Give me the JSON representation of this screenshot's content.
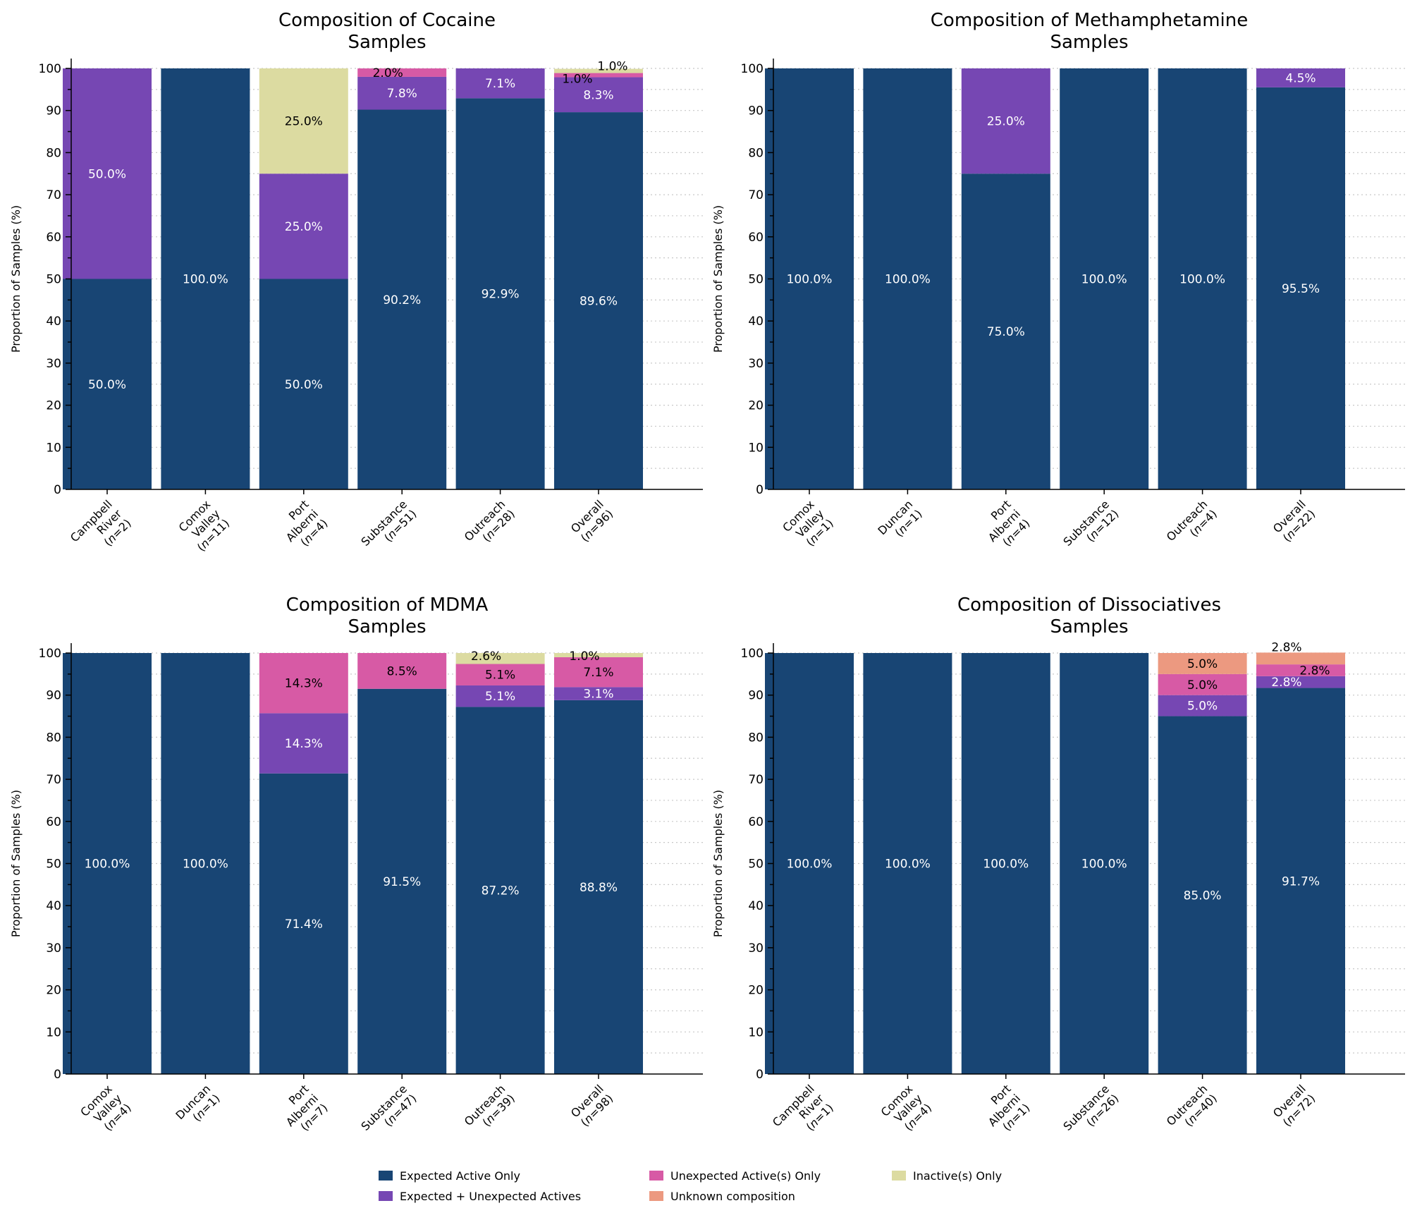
{
  "legend": {
    "placement": "bottom-center",
    "items": [
      {
        "key": "expected",
        "label": "Expected Active Only",
        "color": "#184574"
      },
      {
        "key": "exp_unexp",
        "label": "Expected + Unexpected Actives",
        "color": "#7647b3"
      },
      {
        "key": "unexp",
        "label": "Unexpected Active(s) Only",
        "color": "#d75aa5"
      },
      {
        "key": "unknown",
        "label": "Unknown composition",
        "color": "#ec9980"
      },
      {
        "key": "inactive",
        "label": "Inactive(s) Only",
        "color": "#dcdba1"
      }
    ]
  },
  "chart_data": [
    {
      "type": "bar",
      "stacked": true,
      "title": "Composition of Cocaine\nSamples",
      "xlabel": "",
      "ylabel": "Proportion of Samples (%)",
      "ylim": [
        0,
        100
      ],
      "yticks": [
        0,
        10,
        20,
        30,
        40,
        50,
        60,
        70,
        80,
        90,
        100
      ],
      "grid": true,
      "categories": [
        "Campbell\nRiver\n(n=2)",
        "Comox\nValley\n(n=11)",
        "Port\nAlberni\n(n=4)",
        "Substance\n(n=51)",
        "Outreach\n(n=28)",
        "Overall\n(n=96)"
      ],
      "series": [
        {
          "name": "Expected Active Only",
          "values": [
            50.0,
            100.0,
            50.0,
            90.2,
            92.9,
            89.6
          ]
        },
        {
          "name": "Expected + Unexpected Actives",
          "values": [
            50.0,
            0,
            25.0,
            7.8,
            7.1,
            8.3
          ]
        },
        {
          "name": "Unexpected Active(s) Only",
          "values": [
            0,
            0,
            0,
            2.0,
            0,
            1.0
          ]
        },
        {
          "name": "Unknown composition",
          "values": [
            0,
            0,
            0,
            0,
            0,
            0
          ]
        },
        {
          "name": "Inactive(s) Only",
          "values": [
            0,
            0,
            25.0,
            0,
            0,
            1.0
          ]
        }
      ]
    },
    {
      "type": "bar",
      "stacked": true,
      "title": "Composition of Methamphetamine\nSamples",
      "xlabel": "",
      "ylabel": "Proportion of Samples (%)",
      "ylim": [
        0,
        100
      ],
      "yticks": [
        0,
        10,
        20,
        30,
        40,
        50,
        60,
        70,
        80,
        90,
        100
      ],
      "grid": true,
      "categories": [
        "Comox\nValley\n(n=1)",
        "Duncan\n(n=1)",
        "Port\nAlberni\n(n=4)",
        "Substance\n(n=12)",
        "Outreach\n(n=4)",
        "Overall\n(n=22)"
      ],
      "series": [
        {
          "name": "Expected Active Only",
          "values": [
            100.0,
            100.0,
            75.0,
            100.0,
            100.0,
            95.5
          ]
        },
        {
          "name": "Expected + Unexpected Actives",
          "values": [
            0,
            0,
            25.0,
            0,
            0,
            4.5
          ]
        },
        {
          "name": "Unexpected Active(s) Only",
          "values": [
            0,
            0,
            0,
            0,
            0,
            0
          ]
        },
        {
          "name": "Unknown composition",
          "values": [
            0,
            0,
            0,
            0,
            0,
            0
          ]
        },
        {
          "name": "Inactive(s) Only",
          "values": [
            0,
            0,
            0,
            0,
            0,
            0
          ]
        }
      ]
    },
    {
      "type": "bar",
      "stacked": true,
      "title": "Composition of MDMA\nSamples",
      "xlabel": "",
      "ylabel": "Proportion of Samples (%)",
      "ylim": [
        0,
        100
      ],
      "yticks": [
        0,
        10,
        20,
        30,
        40,
        50,
        60,
        70,
        80,
        90,
        100
      ],
      "grid": true,
      "categories": [
        "Comox\nValley\n(n=4)",
        "Duncan\n(n=1)",
        "Port\nAlberni\n(n=7)",
        "Substance\n(n=47)",
        "Outreach\n(n=39)",
        "Overall\n(n=98)"
      ],
      "series": [
        {
          "name": "Expected Active Only",
          "values": [
            100.0,
            100.0,
            71.4,
            91.5,
            87.2,
            88.8
          ]
        },
        {
          "name": "Expected + Unexpected Actives",
          "values": [
            0,
            0,
            14.3,
            0,
            5.1,
            3.1
          ]
        },
        {
          "name": "Unexpected Active(s) Only",
          "values": [
            0,
            0,
            14.3,
            8.5,
            5.1,
            7.1
          ]
        },
        {
          "name": "Unknown composition",
          "values": [
            0,
            0,
            0,
            0,
            0,
            0
          ]
        },
        {
          "name": "Inactive(s) Only",
          "values": [
            0,
            0,
            0,
            0,
            2.6,
            1.0
          ]
        }
      ]
    },
    {
      "type": "bar",
      "stacked": true,
      "title": "Composition of Dissociatives\nSamples",
      "xlabel": "",
      "ylabel": "Proportion of Samples (%)",
      "ylim": [
        0,
        100
      ],
      "yticks": [
        0,
        10,
        20,
        30,
        40,
        50,
        60,
        70,
        80,
        90,
        100
      ],
      "grid": true,
      "categories": [
        "Campbell\nRiver\n(n=1)",
        "Comox\nValley\n(n=4)",
        "Port\nAlberni\n(n=1)",
        "Substance\n(n=26)",
        "Outreach\n(n=40)",
        "Overall\n(n=72)"
      ],
      "series": [
        {
          "name": "Expected Active Only",
          "values": [
            100.0,
            100.0,
            100.0,
            100.0,
            85.0,
            91.7
          ]
        },
        {
          "name": "Expected + Unexpected Actives",
          "values": [
            0,
            0,
            0,
            0,
            5.0,
            2.8
          ]
        },
        {
          "name": "Unexpected Active(s) Only",
          "values": [
            0,
            0,
            0,
            0,
            5.0,
            2.8
          ]
        },
        {
          "name": "Unknown composition",
          "values": [
            0,
            0,
            0,
            0,
            5.0,
            2.8
          ]
        },
        {
          "name": "Inactive(s) Only",
          "values": [
            0,
            0,
            0,
            0,
            0,
            0
          ]
        }
      ]
    }
  ]
}
